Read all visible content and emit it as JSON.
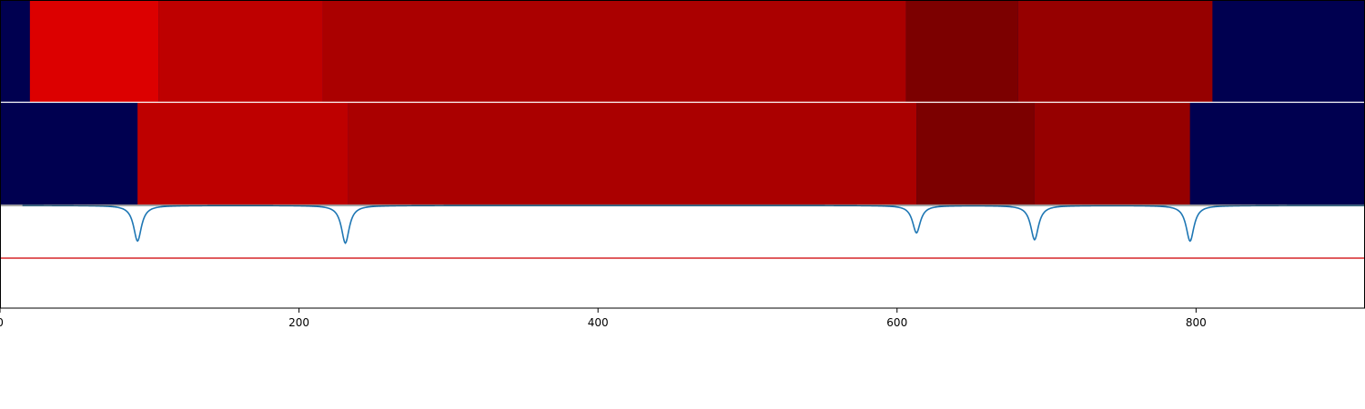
{
  "chart_data": {
    "type": "heatmap",
    "title": "",
    "xlabel": "",
    "ylabel": "",
    "xlim": [
      0,
      913
    ],
    "xticks": [
      0,
      200,
      400,
      600,
      800
    ],
    "xtick_labels": [
      "0",
      "200",
      "400",
      "600",
      "800"
    ],
    "background_color": "#000050",
    "bands": [
      {
        "segments": [
          {
            "start": 0,
            "end": 20,
            "color": "#000050"
          },
          {
            "start": 20,
            "end": 106,
            "color": "#dc0000"
          },
          {
            "start": 106,
            "end": 216,
            "color": "#be0000"
          },
          {
            "start": 216,
            "end": 606,
            "color": "#aa0000"
          },
          {
            "start": 606,
            "end": 681,
            "color": "#7c0000"
          },
          {
            "start": 681,
            "end": 811,
            "color": "#960000"
          },
          {
            "start": 811,
            "end": 913,
            "color": "#000050"
          }
        ]
      },
      {
        "segments": [
          {
            "start": 0,
            "end": 92,
            "color": "#000050"
          },
          {
            "start": 92,
            "end": 233,
            "color": "#be0000"
          },
          {
            "start": 233,
            "end": 613,
            "color": "#aa0000"
          },
          {
            "start": 613,
            "end": 692,
            "color": "#7c0000"
          },
          {
            "start": 692,
            "end": 796,
            "color": "#960000"
          },
          {
            "start": 796,
            "end": 913,
            "color": "#000050"
          }
        ]
      }
    ],
    "signal": {
      "color": "#1f77b4",
      "baseline": 1.0,
      "ylim": [
        -0.5,
        1.0
      ],
      "x_range": [
        15,
        913
      ],
      "dips": [
        {
          "x": 92,
          "depth": 0.52
        },
        {
          "x": 231,
          "depth": 0.55
        },
        {
          "x": 613,
          "depth": 0.4
        },
        {
          "x": 692,
          "depth": 0.5
        },
        {
          "x": 796,
          "depth": 0.52
        }
      ]
    },
    "threshold": {
      "y": 0.23,
      "color": "#d62728"
    }
  }
}
